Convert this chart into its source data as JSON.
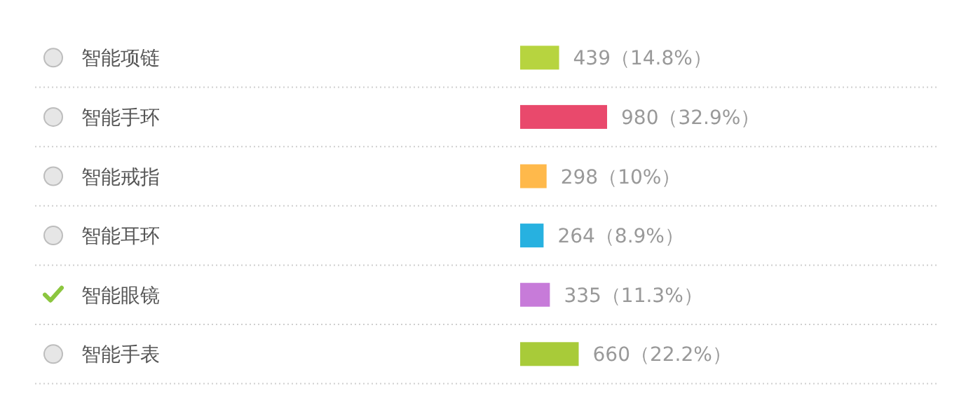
{
  "chart_data": {
    "type": "bar",
    "orientation": "horizontal",
    "categories": [
      "智能项链",
      "智能手环",
      "智能戒指",
      "智能耳环",
      "智能眼镜",
      "智能手表"
    ],
    "values": [
      439,
      980,
      298,
      264,
      335,
      660
    ],
    "colors": [
      "#b7d43f",
      "#e9496c",
      "#ffb94b",
      "#27b1e0",
      "#c77bd9",
      "#a8cb39"
    ],
    "value_labels": [
      "439（14.8%）",
      "980（32.9%）",
      "298（10%）",
      "264（8.9%）",
      "335（11.3%）",
      "660（22.2%）"
    ]
  }
}
